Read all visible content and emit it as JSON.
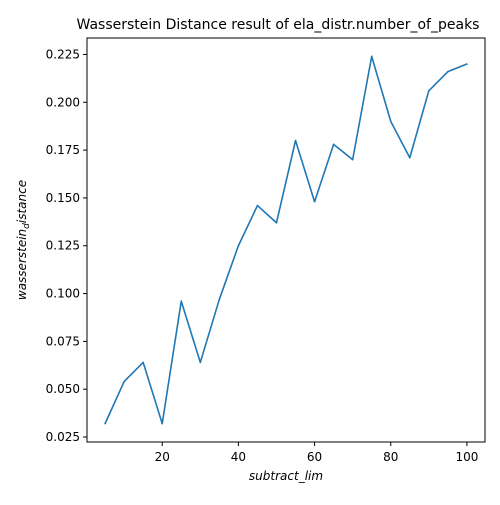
{
  "chart_data": {
    "type": "line",
    "title": "Wasserstein Distance result of ela_distr.number_of_peaks",
    "xlabel": "subtract_lim",
    "ylabel_main": "wasserstein",
    "ylabel_sub": "d",
    "ylabel_tail": "istance",
    "xlim": [
      0.25,
      104.75
    ],
    "ylim": [
      0.0224,
      0.2336
    ],
    "x_ticks": [
      {
        "value": 20,
        "label": "20"
      },
      {
        "value": 40,
        "label": "40"
      },
      {
        "value": 60,
        "label": "60"
      },
      {
        "value": 80,
        "label": "80"
      },
      {
        "value": 100,
        "label": "100"
      }
    ],
    "y_ticks": [
      {
        "value": 0.025,
        "label": "0.025"
      },
      {
        "value": 0.05,
        "label": "0.050"
      },
      {
        "value": 0.075,
        "label": "0.075"
      },
      {
        "value": 0.1,
        "label": "0.100"
      },
      {
        "value": 0.125,
        "label": "0.125"
      },
      {
        "value": 0.15,
        "label": "0.150"
      },
      {
        "value": 0.175,
        "label": "0.175"
      },
      {
        "value": 0.2,
        "label": "0.200"
      },
      {
        "value": 0.225,
        "label": "0.225"
      }
    ],
    "grid": false,
    "series": [
      {
        "color": "#1f77b4",
        "x": [
          5,
          10,
          15,
          20,
          25,
          30,
          35,
          40,
          45,
          50,
          55,
          60,
          65,
          70,
          75,
          80,
          85,
          90,
          95,
          100
        ],
        "y": [
          0.032,
          0.054,
          0.064,
          0.032,
          0.096,
          0.064,
          0.097,
          0.125,
          0.146,
          0.137,
          0.18,
          0.148,
          0.178,
          0.17,
          0.224,
          0.19,
          0.171,
          0.206,
          0.216,
          0.22
        ]
      }
    ]
  }
}
